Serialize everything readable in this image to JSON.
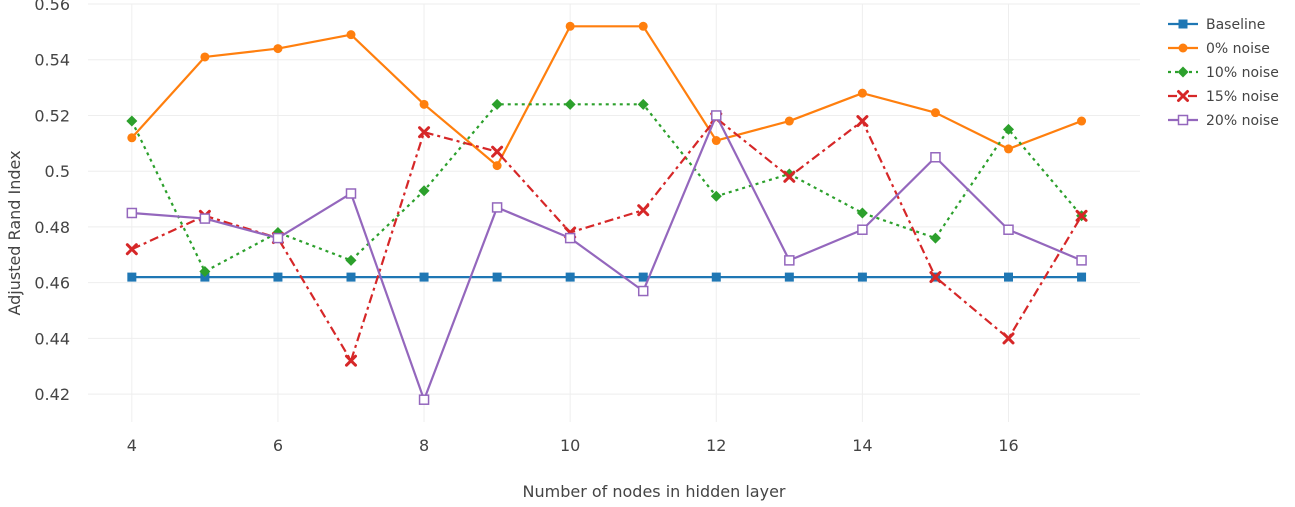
{
  "chart_data": {
    "type": "line",
    "xlabel": "Number of nodes in hidden layer",
    "ylabel": "Adjusted Rand Index",
    "xlim": [
      3.4,
      17.8
    ],
    "ylim": [
      0.41,
      0.56
    ],
    "x_ticks": [
      4,
      6,
      8,
      10,
      12,
      14,
      16
    ],
    "x_tick_labels": [
      "4",
      "6",
      "8",
      "10",
      "12",
      "14",
      "16"
    ],
    "y_ticks": [
      0.42,
      0.44,
      0.46,
      0.48,
      0.5,
      0.52,
      0.54,
      0.56
    ],
    "y_tick_labels": [
      "0.42",
      "0.44",
      "0.46",
      "0.48",
      "0.5",
      "0.52",
      "0.54",
      "0.56"
    ],
    "grid": true,
    "legend_position": "top-right",
    "x": [
      4,
      5,
      6,
      7,
      8,
      9,
      10,
      11,
      12,
      13,
      14,
      15,
      16,
      17
    ],
    "series": [
      {
        "name": "Baseline",
        "color": "#1f77b4",
        "line_style": "solid",
        "marker": "square",
        "values": [
          0.462,
          0.462,
          0.462,
          0.462,
          0.462,
          0.462,
          0.462,
          0.462,
          0.462,
          0.462,
          0.462,
          0.462,
          0.462,
          0.462
        ]
      },
      {
        "name": "0% noise",
        "color": "#ff7f0e",
        "line_style": "solid",
        "marker": "circle",
        "values": [
          0.512,
          0.541,
          0.544,
          0.549,
          0.524,
          0.502,
          0.552,
          0.552,
          0.511,
          0.518,
          0.528,
          0.521,
          0.508,
          0.518
        ]
      },
      {
        "name": "10% noise",
        "color": "#2ca02c",
        "line_style": "dot",
        "marker": "diamond",
        "values": [
          0.518,
          0.464,
          0.478,
          0.468,
          0.493,
          0.524,
          0.524,
          0.524,
          0.491,
          0.499,
          0.485,
          0.476,
          0.515,
          0.484
        ]
      },
      {
        "name": "15% noise",
        "color": "#d62728",
        "line_style": "dashdot",
        "marker": "x",
        "values": [
          0.472,
          0.484,
          0.476,
          0.432,
          0.514,
          0.507,
          0.478,
          0.486,
          0.519,
          0.498,
          0.518,
          0.462,
          0.44,
          0.484
        ]
      },
      {
        "name": "20% noise",
        "color": "#9467bd",
        "line_style": "solid",
        "marker": "square-open",
        "values": [
          0.485,
          0.483,
          0.476,
          0.492,
          0.418,
          0.487,
          0.476,
          0.457,
          0.52,
          0.468,
          0.479,
          0.505,
          0.479,
          0.468
        ]
      }
    ]
  }
}
